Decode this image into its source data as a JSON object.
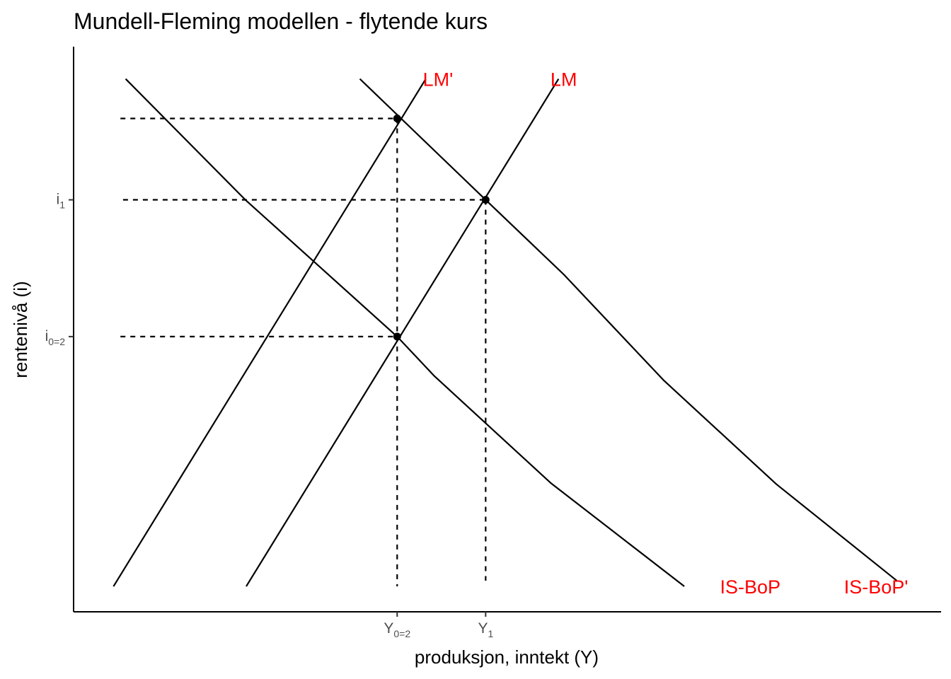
{
  "chart_data": {
    "type": "line",
    "title": "Mundell-Fleming modellen - flytende kurs",
    "xlabel": "produksjon, inntekt (Y)",
    "ylabel": "rentenivå (i)",
    "xlim": [
      0,
      100
    ],
    "ylim": [
      0,
      100
    ],
    "grid": false,
    "axes_color": "#000000",
    "label_color": "#ff0000",
    "x_ticks": [
      {
        "value": 37.3,
        "base": "Y",
        "sub": "0=2"
      },
      {
        "value": 47.5,
        "base": "Y",
        "sub": "1"
      }
    ],
    "y_ticks": [
      {
        "value": 48.7,
        "base": "i",
        "sub": "0=2"
      },
      {
        "value": 72.9,
        "base": "i",
        "sub": "1"
      }
    ],
    "series": [
      {
        "name": "LM'",
        "color": "#000000",
        "x": [
          4.6,
          40.6
        ],
        "y": [
          4.5,
          94.3
        ]
      },
      {
        "name": "LM",
        "color": "#000000",
        "x": [
          19.9,
          55.9
        ],
        "y": [
          4.5,
          94.3
        ]
      },
      {
        "name": "IS-BoP",
        "color": "#000000",
        "x": [
          6.0,
          19.8,
          37.3,
          41.6,
          55.0,
          70.4
        ],
        "y": [
          94.3,
          72.9,
          48.7,
          41.7,
          22.8,
          4.5
        ]
      },
      {
        "name": "IS-BoP'",
        "color": "#000000",
        "x": [
          33.0,
          47.5,
          56.5,
          68.0,
          81.0,
          94.9
        ],
        "y": [
          94.3,
          72.9,
          59.7,
          41.0,
          22.6,
          5.5
        ]
      }
    ],
    "annotations": [
      {
        "text": "LM'",
        "x": 42.0,
        "y": 94.3,
        "color": "#ff0000"
      },
      {
        "text": "LM",
        "x": 56.5,
        "y": 94.3,
        "color": "#ff0000"
      },
      {
        "text": "IS-BoP",
        "x": 78.0,
        "y": 4.5,
        "color": "#ff0000"
      },
      {
        "text": "IS-BoP'",
        "x": 92.5,
        "y": 4.5,
        "color": "#ff0000"
      }
    ],
    "points": [
      {
        "x": 37.3,
        "y": 48.7
      },
      {
        "x": 47.5,
        "y": 72.9
      },
      {
        "x": 37.3,
        "y": 87.3
      }
    ],
    "guides": [
      {
        "x": [
          5.4,
          37.3
        ],
        "y": [
          48.7,
          48.7
        ]
      },
      {
        "x": [
          37.3,
          37.3
        ],
        "y": [
          48.7,
          4.5
        ]
      },
      {
        "x": [
          5.7,
          47.5
        ],
        "y": [
          72.9,
          72.9
        ]
      },
      {
        "x": [
          47.5,
          47.5
        ],
        "y": [
          72.9,
          5.5
        ]
      },
      {
        "x": [
          5.4,
          37.3
        ],
        "y": [
          87.3,
          87.3
        ]
      },
      {
        "x": [
          37.3,
          37.3
        ],
        "y": [
          87.3,
          48.7
        ]
      }
    ]
  }
}
